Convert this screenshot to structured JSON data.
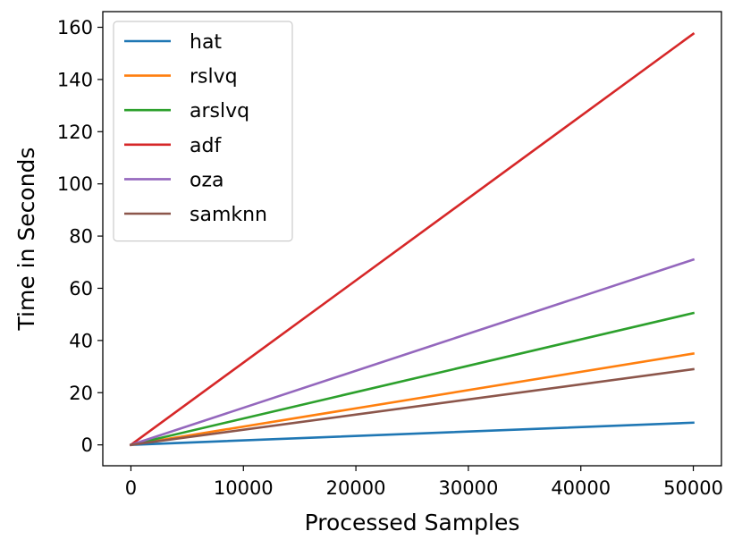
{
  "chart_data": {
    "type": "line",
    "title": "",
    "xlabel": "Processed Samples",
    "ylabel": "Time in Seconds",
    "xlim": [
      -2500,
      52500
    ],
    "ylim": [
      -8,
      166
    ],
    "xticks": [
      0,
      10000,
      20000,
      30000,
      40000,
      50000
    ],
    "yticks": [
      0,
      20,
      40,
      60,
      80,
      100,
      120,
      140,
      160
    ],
    "legend_position": "top-left",
    "grid": false,
    "x": [
      0,
      50000
    ],
    "series": [
      {
        "name": "hat",
        "color": "#1f77b4",
        "values": [
          0,
          8.5
        ]
      },
      {
        "name": "rslvq",
        "color": "#ff7f0e",
        "values": [
          0,
          35
        ]
      },
      {
        "name": "arslvq",
        "color": "#2ca02c",
        "values": [
          0,
          50.5
        ]
      },
      {
        "name": "adf",
        "color": "#d62728",
        "values": [
          0,
          157.5
        ]
      },
      {
        "name": "oza",
        "color": "#9467bd",
        "values": [
          0,
          71
        ]
      },
      {
        "name": "samknn",
        "color": "#8c564b",
        "values": [
          0,
          29
        ]
      }
    ]
  }
}
